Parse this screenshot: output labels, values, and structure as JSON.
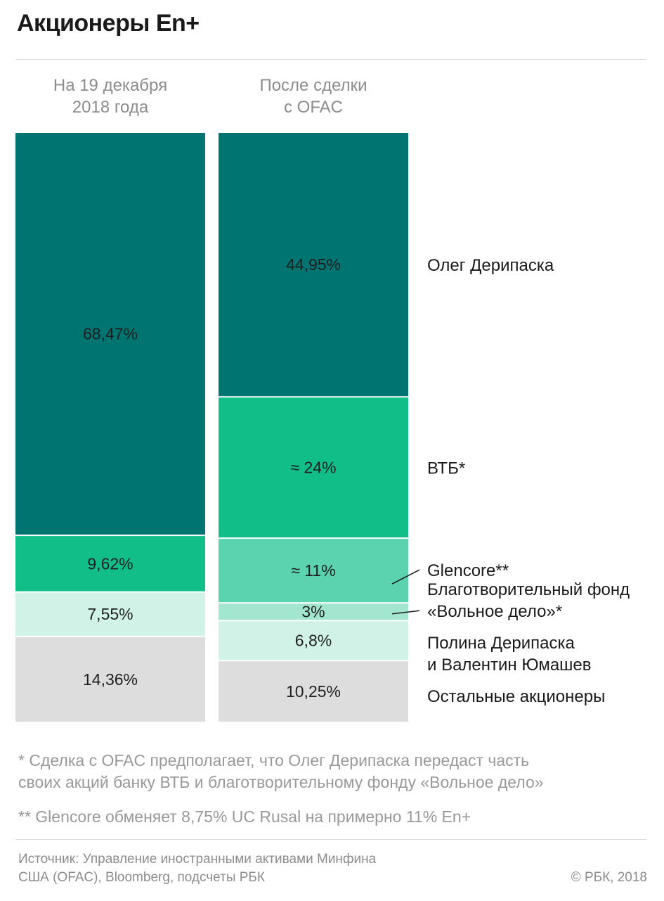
{
  "title": "Акционеры En+",
  "chart_data": {
    "type": "bar",
    "stacked": true,
    "normalized": true,
    "columns": [
      {
        "label_lines": [
          "На 19 декабря",
          "2018 года"
        ],
        "segments": [
          {
            "series": "Олег Дерипаска",
            "value": 68.47,
            "label": "68,47%"
          },
          {
            "series": "ВТБ",
            "value": 9.62,
            "label": "9,62%"
          },
          {
            "series": "Полина Дерипаска и Валентин Юмашев",
            "value": 7.55,
            "label": "7,55%"
          },
          {
            "series": "Остальные акционеры",
            "value": 14.36,
            "label": "14,36%"
          }
        ]
      },
      {
        "label_lines": [
          "После сделки",
          "с OFAC"
        ],
        "segments": [
          {
            "series": "Олег Дерипаска",
            "value": 44.95,
            "label": "44,95%"
          },
          {
            "series": "ВТБ",
            "value": 24,
            "label": "≈ 24%"
          },
          {
            "series": "Glencore",
            "value": 11,
            "label": "≈ 11%"
          },
          {
            "series": "Благотворительный фонд «Вольное дело»",
            "value": 3,
            "label": "3%"
          },
          {
            "series": "Полина Дерипаска и Валентин Юмашев",
            "value": 6.8,
            "label": "6,8%"
          },
          {
            "series": "Остальные акционеры",
            "value": 10.25,
            "label": "10,25%"
          }
        ]
      }
    ],
    "legend": [
      {
        "series": "Олег Дерипаска",
        "lines": [
          "Олег Дерипаска"
        ],
        "leader": false
      },
      {
        "series": "ВТБ",
        "lines": [
          "ВТБ*"
        ],
        "leader": false
      },
      {
        "series": "Glencore",
        "lines": [
          "Glencore**"
        ],
        "leader": true
      },
      {
        "series": "Благотворительный фонд «Вольное дело»",
        "lines": [
          "Благотворительный фонд",
          "«Вольное дело»*"
        ],
        "leader": true
      },
      {
        "series": "Полина Дерипаска и Валентин Юмашев",
        "lines": [
          "Полина Дерипаска",
          "и Валентин Юмашев"
        ],
        "leader": false
      },
      {
        "series": "Остальные акционеры",
        "lines": [
          "Остальные акционеры"
        ],
        "leader": false
      }
    ],
    "colors": {
      "Олег Дерипаска": "#007470",
      "ВТБ": "#12be88",
      "Glencore": "#5bd3ae",
      "Благотворительный фонд «Вольное дело»": "#a3e6cf",
      "Полина Дерипаска и Валентин Юмашев": "#d1f2e6",
      "Остальные акционеры": "#dddddd"
    },
    "legend_placement": "right"
  },
  "notes": {
    "note1_line1": "* Сделка с OFAC предполагает, что Олег Дерипаска передаст часть",
    "note1_line2": "своих акций банку ВТБ и благотворительному фонду «Вольное дело»",
    "note2": "** Glencore обменяет 8,75% UC Rusal на примерно 11% En+"
  },
  "source_line1": "Источник: Управление иностранными активами Минфина",
  "source_line2": "США (OFAC), Bloomberg, подсчеты РБК",
  "copyright": "© РБК, 2018"
}
